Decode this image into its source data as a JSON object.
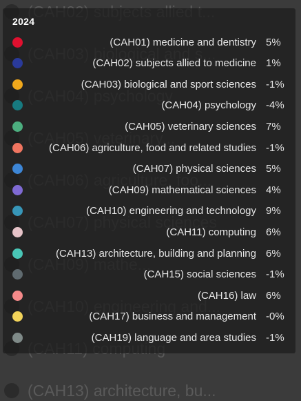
{
  "chart_data": {
    "type": "tooltip",
    "title": "2024",
    "series": [
      {
        "name": "(CAH01) medicine and dentistry",
        "value": "5%",
        "color": "#e0102f"
      },
      {
        "name": "(CAH02) subjects allied to medicine",
        "value": "1%",
        "color": "#2a3a9a"
      },
      {
        "name": "(CAH03) biological and sport sciences",
        "value": "-1%",
        "color": "#f0a81c"
      },
      {
        "name": "(CAH04) psychology",
        "value": "-4%",
        "color": "#177a80"
      },
      {
        "name": "(CAH05) veterinary sciences",
        "value": "7%",
        "color": "#4cae7f"
      },
      {
        "name": "(CAH06) agriculture, food and related studies",
        "value": "-1%",
        "color": "#f07560"
      },
      {
        "name": "(CAH07) physical sciences",
        "value": "5%",
        "color": "#3d86d6"
      },
      {
        "name": "(CAH09) mathematical sciences",
        "value": "4%",
        "color": "#7f6ad3"
      },
      {
        "name": "(CAH10) engineering and technology",
        "value": "9%",
        "color": "#3796b8"
      },
      {
        "name": "(CAH11) computing",
        "value": "6%",
        "color": "#e6c3c8"
      },
      {
        "name": "(CAH13) architecture, building and planning",
        "value": "6%",
        "color": "#49c6b6"
      },
      {
        "name": "(CAH15) social sciences",
        "value": "-1%",
        "color": "#5f6a6f"
      },
      {
        "name": "(CAH16) law",
        "value": "6%",
        "color": "#f58a8a"
      },
      {
        "name": "(CAH17) business and management",
        "value": "-0%",
        "color": "#f2d35a"
      },
      {
        "name": "(CAH19) language and area studies",
        "value": "-1%",
        "color": "#7f8a88"
      }
    ]
  },
  "background_labels": [
    "(CAH02) subjects allied t...",
    "(CAH03) biological and s...",
    "(CAH04) psychology",
    "(CAH05) veterinary...",
    "(CAH06) agriculture, foo...",
    "(CAH07) physical sciences",
    "(CAH09) mathe...",
    "(CAH10) engineering and...",
    "(CAH11) computing",
    "(CAH13) architecture, bu..."
  ]
}
